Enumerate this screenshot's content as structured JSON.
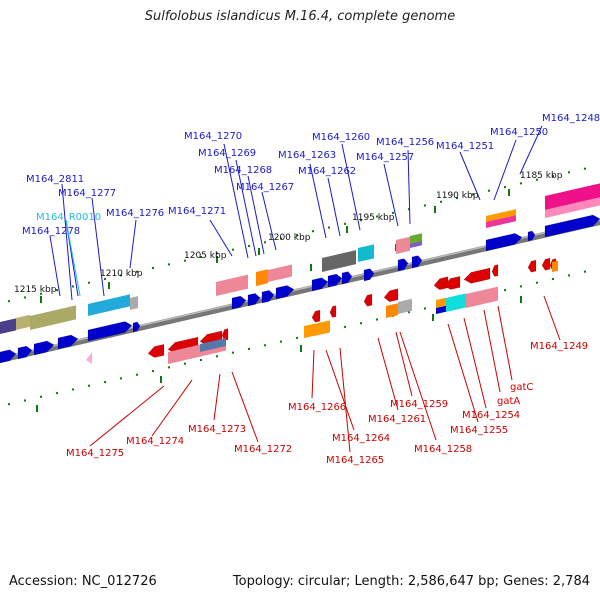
{
  "title": "Sulfolobus islandicus M.16.4, complete genome",
  "footer": {
    "accession": "Accession: NC_012726",
    "summary": "Topology: circular; Length: 2,586,647 bp; Genes: 2,784"
  },
  "scale_labels": [
    "1215 kbp",
    "1210 kbp",
    "1205 kbp",
    "1200 kbp",
    "1195 kbp",
    "1190 kbp",
    "1185 kbp"
  ],
  "top_labels": [
    "M164_2811",
    "M164_1277",
    "M164_R0010",
    "M164_1278",
    "M164_1276",
    "M164_1271",
    "M164_1270",
    "M164_1269",
    "M164_1268",
    "M164_1267",
    "M164_1263",
    "M164_1262",
    "M164_1260",
    "M164_1257",
    "M164_1256",
    "M164_1251",
    "M164_1250",
    "M164_1248"
  ],
  "bottom_labels": [
    "M164_1275",
    "M164_1274",
    "M164_1273",
    "M164_1272",
    "M164_1266",
    "M164_1264",
    "M164_1265",
    "M164_1261",
    "M164_1259",
    "M164_1258",
    "M164_1255",
    "M164_1254",
    "gatA",
    "gatC",
    "M164_1249"
  ],
  "colors": {
    "forward_gene": "#0000cc",
    "reverse_gene": "#dd0000",
    "forward_label": "#1a1acc",
    "reverse_label": "#cc0000",
    "rna_label": "#22bbdd",
    "backbone": "#777777",
    "tick": "#117711"
  }
}
